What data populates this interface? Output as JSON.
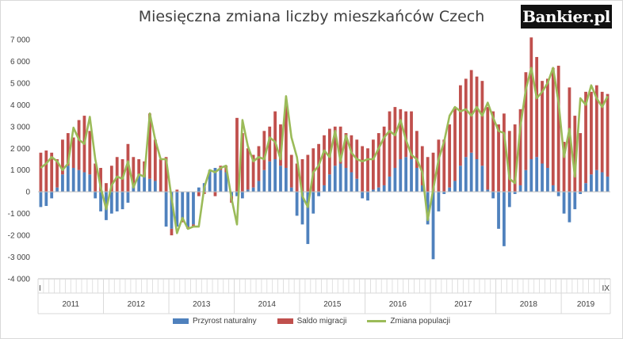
{
  "logo_text": "Bankier.pl",
  "colors": {
    "natural": "#4f81bd",
    "migration": "#c0504d",
    "population": "#9bbb59",
    "axis": "#bfbfbf"
  },
  "chart_data": {
    "type": "bar",
    "title": "Miesięczna zmiana liczby mieszkańców Czech",
    "xlabel": "",
    "ylabel": "",
    "ylim": [
      -4000,
      7000
    ],
    "yticks": [
      "7 000",
      "6 000",
      "5 000",
      "4 000",
      "3 000",
      "2 000",
      "1 000",
      "0",
      "-1 000",
      "-2 000",
      "-3 000",
      "-4 000"
    ],
    "year_labels": [
      "2011",
      "2012",
      "2013",
      "2014",
      "2015",
      "2016",
      "2017",
      "2018",
      "2019"
    ],
    "start_month_label": "I",
    "end_month_label": "IX",
    "grid": false,
    "legend_position": "bottom",
    "months": 105,
    "series": [
      {
        "name": "Przyrost naturalny",
        "kind": "bar",
        "values": [
          -700,
          -650,
          -300,
          200,
          800,
          1200,
          1100,
          1000,
          900,
          800,
          -300,
          -900,
          -1300,
          -1000,
          -900,
          -800,
          -500,
          300,
          800,
          700,
          600,
          500,
          0,
          -1600,
          -1700,
          -1600,
          -1300,
          -1600,
          -1500,
          200,
          400,
          1000,
          1100,
          1000,
          900,
          -200,
          -200,
          -300,
          100,
          200,
          500,
          1000,
          1400,
          1500,
          1200,
          1100,
          200,
          -1100,
          -1500,
          -2400,
          -1000,
          -200,
          300,
          800,
          1200,
          1300,
          1100,
          900,
          600,
          -300,
          -400,
          100,
          200,
          300,
          700,
          1100,
          1500,
          1600,
          1500,
          1100,
          300,
          -1500,
          -3100,
          -900,
          -100,
          200,
          500,
          1200,
          1600,
          1800,
          1500,
          1200,
          100,
          -300,
          -1700,
          -2500,
          -700,
          -100,
          300,
          1000,
          1500,
          1600,
          1300,
          1100,
          300,
          -200,
          -1000,
          -1400,
          -800,
          -100,
          400,
          800,
          1000,
          900,
          700
        ]
      },
      {
        "name": "Saldo migracji",
        "kind": "bar",
        "values": [
          1800,
          1900,
          1800,
          1300,
          1600,
          1500,
          1400,
          2300,
          2600,
          2000,
          1300,
          1100,
          400,
          1200,
          1600,
          1500,
          2200,
          1300,
          700,
          700,
          3000,
          1900,
          1500,
          1600,
          -300,
          100,
          -100,
          -100,
          -100,
          -200,
          -100,
          0,
          -200,
          200,
          300,
          -300,
          3400,
          2700,
          1900,
          1500,
          1600,
          1800,
          1600,
          2200,
          1900,
          2900,
          1500,
          1300,
          1500,
          1700,
          2000,
          2200,
          2300,
          2100,
          1800,
          1700,
          1600,
          1700,
          1800,
          2100,
          2000,
          2300,
          2500,
          2700,
          3000,
          2800,
          2300,
          2100,
          2200,
          1700,
          1800,
          1600,
          1800,
          2400,
          2400,
          2900,
          3400,
          3700,
          3600,
          3800,
          3800,
          3900,
          3800,
          3700,
          3100,
          3600,
          2800,
          3100,
          3500,
          4500,
          5600,
          4600,
          3800,
          4100,
          5400,
          5800,
          2300,
          4800,
          3500,
          2700,
          4200,
          3800,
          3900,
          3700,
          3800
        ]
      },
      {
        "name": "Zmiana populacji",
        "kind": "line",
        "values": [
          1100,
          1300,
          1600,
          1400,
          1000,
          1300,
          2950,
          2400,
          2200,
          3450,
          1500,
          200,
          -800,
          300,
          700,
          600,
          1400,
          200,
          800,
          700,
          3600,
          2400,
          1500,
          1500,
          -300,
          -1900,
          -1200,
          -1700,
          -1600,
          -1600,
          200,
          1000,
          900,
          1100,
          1200,
          -300,
          -1500,
          3300,
          2100,
          1400,
          1600,
          1500,
          2500,
          2300,
          1500,
          4400,
          2500,
          1600,
          -200,
          -700,
          900,
          1200,
          1900,
          1600,
          2800,
          1400,
          2600,
          1800,
          1500,
          1400,
          1500,
          1500,
          2000,
          2500,
          2800,
          2600,
          3300,
          2400,
          1700,
          1500,
          900,
          -1300,
          100,
          1500,
          2300,
          3500,
          3900,
          3700,
          3800,
          3500,
          3900,
          3500,
          4100,
          3400,
          2800,
          2700,
          600,
          400,
          3000,
          4700,
          5700,
          4300,
          4600,
          5000,
          5700,
          4100,
          1600,
          2900,
          700,
          4300,
          4000,
          4900,
          4300,
          3900,
          4400
        ]
      }
    ]
  }
}
